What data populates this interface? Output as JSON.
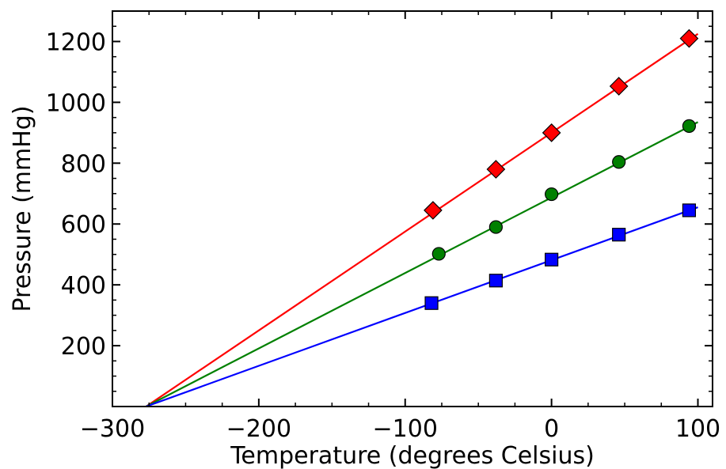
{
  "chart_data": {
    "type": "line",
    "title": "",
    "xlabel": "Temperature (degrees Celsius)",
    "ylabel": "Pressure (mmHg)",
    "xlim": [
      -300,
      110
    ],
    "ylim": [
      0,
      1300
    ],
    "grid": false,
    "legend": "none",
    "xticks": [
      -300,
      -200,
      -100,
      0,
      100
    ],
    "xtick_labels": [
      "−300",
      "−200",
      "−100",
      "0",
      "100"
    ],
    "yticks": [
      200,
      400,
      600,
      800,
      1000,
      1200
    ],
    "ytick_labels": [
      "200",
      "400",
      "600",
      "800",
      "1000",
      "1200"
    ],
    "series": [
      {
        "color": "#ff0000",
        "marker": "diamond",
        "points": [
          [
            -81,
            645
          ],
          [
            -38,
            780
          ],
          [
            0,
            900
          ],
          [
            46,
            1053
          ],
          [
            94,
            1210
          ]
        ],
        "fit_line": [
          [
            -277,
            0
          ],
          [
            100,
            1225
          ]
        ]
      },
      {
        "color": "#008000",
        "marker": "circle",
        "points": [
          [
            -77,
            502
          ],
          [
            -38,
            590
          ],
          [
            0,
            698
          ],
          [
            46,
            804
          ],
          [
            94,
            922
          ]
        ],
        "fit_line": [
          [
            -277,
            0
          ],
          [
            100,
            935
          ]
        ]
      },
      {
        "color": "#0000ff",
        "marker": "square",
        "points": [
          [
            -82,
            340
          ],
          [
            -38,
            414
          ],
          [
            0,
            483
          ],
          [
            46,
            565
          ],
          [
            94,
            645
          ]
        ],
        "fit_line": [
          [
            -277,
            0
          ],
          [
            100,
            655
          ]
        ]
      }
    ]
  }
}
